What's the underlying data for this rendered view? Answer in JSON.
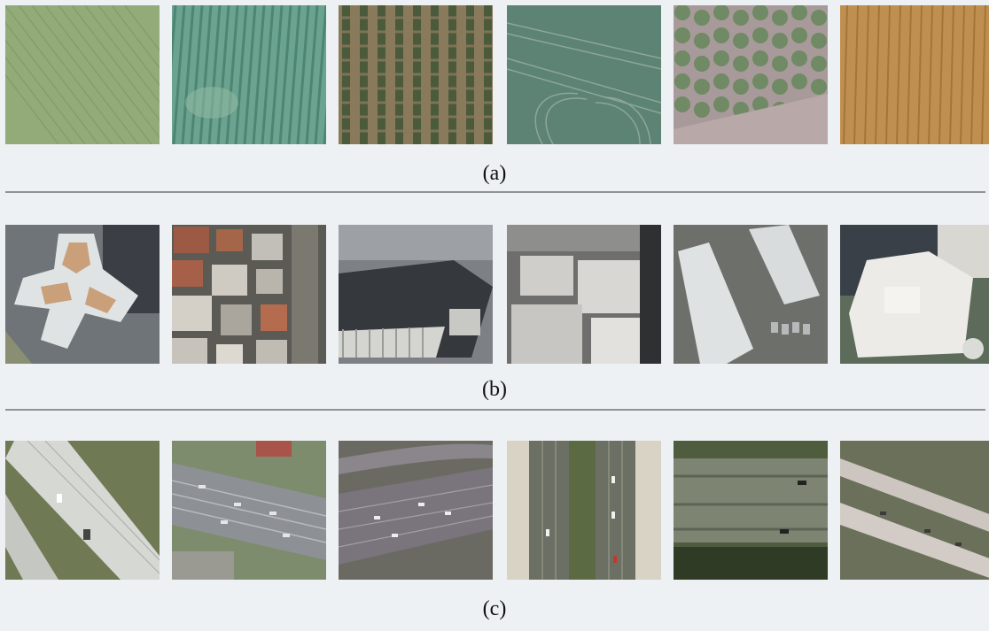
{
  "rows": [
    {
      "caption": "(a)",
      "tiles": [
        {
          "name": "farmland-grass-stripes",
          "base": "#8fa874"
        },
        {
          "name": "farmland-green-rows",
          "base": "#6fa590"
        },
        {
          "name": "orchard-tree-rows",
          "base": "#6b6046"
        },
        {
          "name": "field-with-tracks",
          "base": "#5d8474"
        },
        {
          "name": "orchard-round-trees",
          "base": "#8e9a74"
        },
        {
          "name": "harvested-wheat-field",
          "base": "#b8894a"
        }
      ]
    },
    {
      "caption": "(b)",
      "tiles": [
        {
          "name": "star-shaped-building",
          "base": "#7a7f82"
        },
        {
          "name": "dense-residential-roofs",
          "base": "#8d857a"
        },
        {
          "name": "large-dark-roof-building",
          "base": "#5e6266"
        },
        {
          "name": "flat-roof-towers",
          "base": "#9a9a98"
        },
        {
          "name": "warehouses-and-lots",
          "base": "#7c7f79"
        },
        {
          "name": "white-complex-building",
          "base": "#6e756f"
        }
      ]
    },
    {
      "caption": "(c)",
      "tiles": [
        {
          "name": "diagonal-highway-trees",
          "base": "#9ea28e"
        },
        {
          "name": "multi-lane-freeway",
          "base": "#8c9094"
        },
        {
          "name": "curved-highway-overpass",
          "base": "#7f7a7e"
        },
        {
          "name": "vertical-divided-highway",
          "base": "#7d8270"
        },
        {
          "name": "highway-with-barriers",
          "base": "#5d6a4d"
        },
        {
          "name": "bridge-over-vegetation",
          "base": "#7e7d6f"
        }
      ]
    }
  ]
}
